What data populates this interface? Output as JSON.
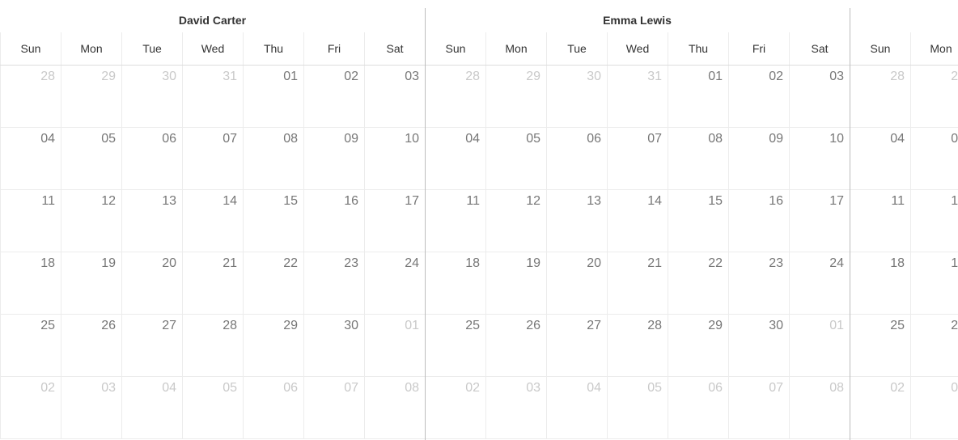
{
  "resources": [
    {
      "name": "David Carter"
    },
    {
      "name": "Emma Lewis"
    },
    {
      "name": ""
    }
  ],
  "day_headers": [
    "Sun",
    "Mon",
    "Tue",
    "Wed",
    "Thu",
    "Fri",
    "Sat"
  ],
  "weeks": [
    [
      {
        "d": "28",
        "other": true
      },
      {
        "d": "29",
        "other": true
      },
      {
        "d": "30",
        "other": true
      },
      {
        "d": "31",
        "other": true
      },
      {
        "d": "01",
        "other": false
      },
      {
        "d": "02",
        "other": false
      },
      {
        "d": "03",
        "other": false
      }
    ],
    [
      {
        "d": "04",
        "other": false
      },
      {
        "d": "05",
        "other": false
      },
      {
        "d": "06",
        "other": false
      },
      {
        "d": "07",
        "other": false
      },
      {
        "d": "08",
        "other": false
      },
      {
        "d": "09",
        "other": false
      },
      {
        "d": "10",
        "other": false
      }
    ],
    [
      {
        "d": "11",
        "other": false
      },
      {
        "d": "12",
        "other": false
      },
      {
        "d": "13",
        "other": false
      },
      {
        "d": "14",
        "other": false
      },
      {
        "d": "15",
        "other": false
      },
      {
        "d": "16",
        "other": false
      },
      {
        "d": "17",
        "other": false
      }
    ],
    [
      {
        "d": "18",
        "other": false
      },
      {
        "d": "19",
        "other": false
      },
      {
        "d": "20",
        "other": false
      },
      {
        "d": "21",
        "other": false
      },
      {
        "d": "22",
        "other": false
      },
      {
        "d": "23",
        "other": false
      },
      {
        "d": "24",
        "other": false
      }
    ],
    [
      {
        "d": "25",
        "other": false
      },
      {
        "d": "26",
        "other": false
      },
      {
        "d": "27",
        "other": false
      },
      {
        "d": "28",
        "other": false
      },
      {
        "d": "29",
        "other": false
      },
      {
        "d": "30",
        "other": false
      },
      {
        "d": "01",
        "other": true
      }
    ],
    [
      {
        "d": "02",
        "other": true
      },
      {
        "d": "03",
        "other": true
      },
      {
        "d": "04",
        "other": true
      },
      {
        "d": "05",
        "other": true
      },
      {
        "d": "06",
        "other": true
      },
      {
        "d": "07",
        "other": true
      },
      {
        "d": "08",
        "other": true
      }
    ]
  ]
}
